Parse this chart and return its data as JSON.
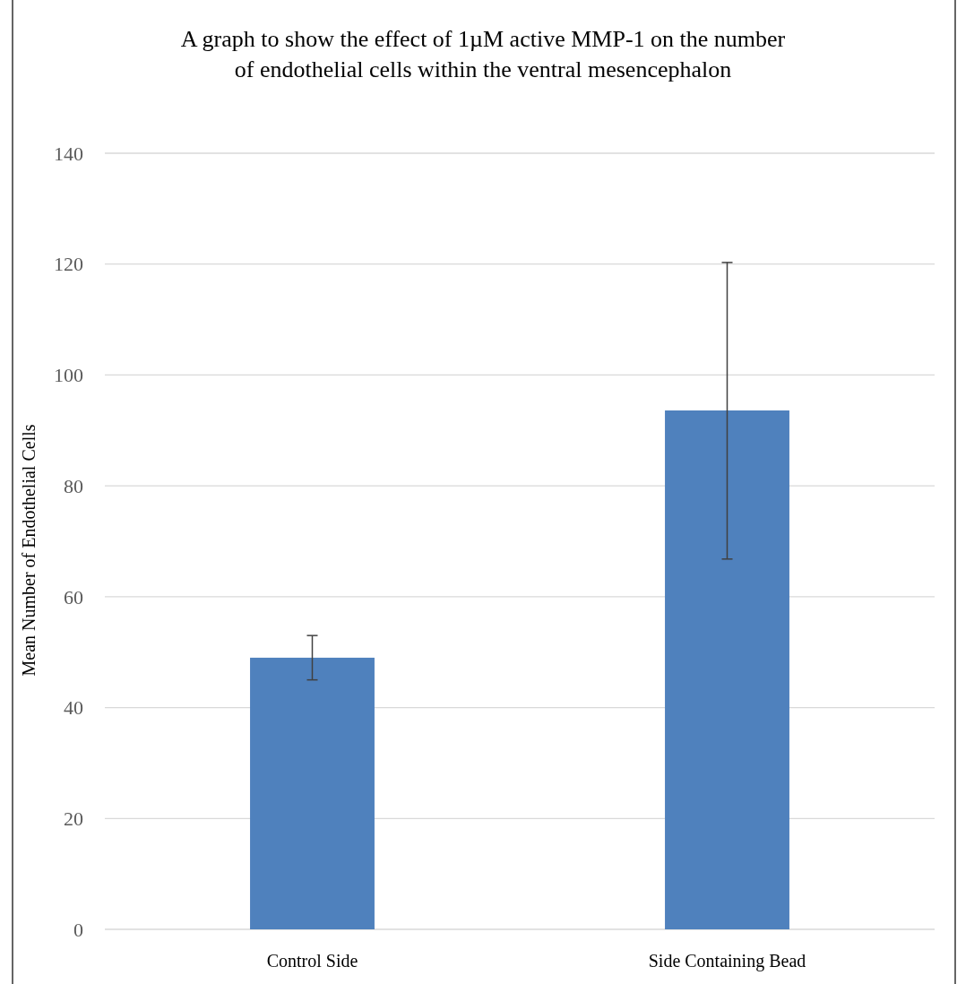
{
  "chart_data": {
    "type": "bar",
    "title": "A graph to show the effect of 1µM active MMP-1 on the number of endothelial cells within the ventral mesencephalon",
    "ylabel": "Mean Number of Endothelial Cells",
    "categories": [
      "Control Side",
      "Side Containing Bead"
    ],
    "values": [
      49,
      93.6
    ],
    "errors": [
      [
        45,
        53
      ],
      [
        66.8,
        120.3
      ]
    ],
    "color": "#4f81bd",
    "ylim": [
      0,
      140
    ],
    "yticks": [
      0,
      20,
      40,
      60,
      80,
      100,
      120,
      140
    ],
    "grid": "y"
  }
}
